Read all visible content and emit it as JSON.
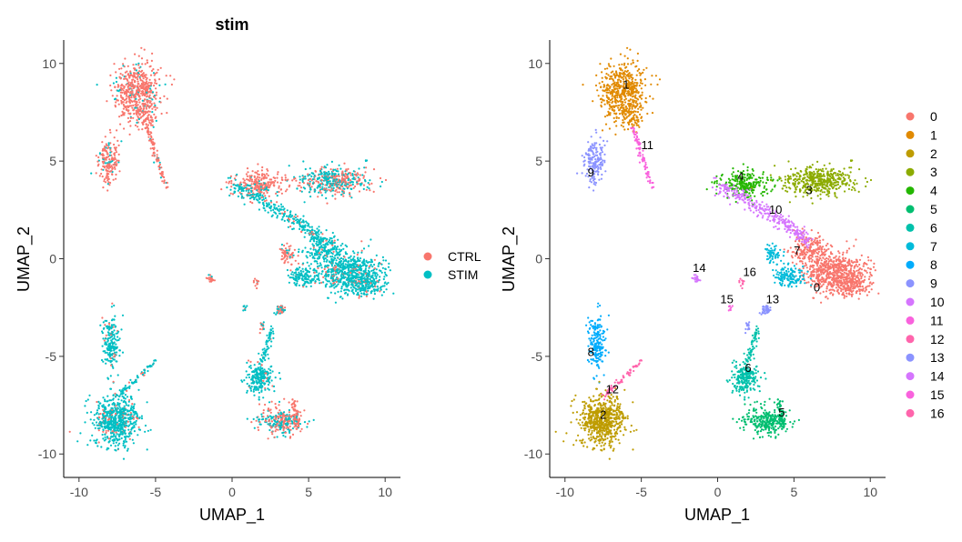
{
  "chart_data": [
    {
      "type": "scatter",
      "title": "stim",
      "xlabel": "UMAP_1",
      "ylabel": "UMAP_2",
      "xlim": [
        -11,
        11
      ],
      "ylim": [
        -11.2,
        11.2
      ],
      "xticks": [
        -10,
        -5,
        0,
        5,
        10
      ],
      "yticks": [
        -10,
        -5,
        0,
        5,
        10
      ],
      "grid": false,
      "legend_position": "right",
      "series": [
        {
          "name": "CTRL",
          "color": "#F8766D"
        },
        {
          "name": "STIM",
          "color": "#00BFC4"
        }
      ]
    },
    {
      "type": "scatter",
      "title": "",
      "xlabel": "UMAP_1",
      "ylabel": "UMAP_2",
      "xlim": [
        -11,
        11
      ],
      "ylim": [
        -11.2,
        11.2
      ],
      "xticks": [
        -10,
        -5,
        0,
        5,
        10
      ],
      "yticks": [
        -10,
        -5,
        0,
        5,
        10
      ],
      "grid": false,
      "legend_position": "right",
      "series": [
        {
          "name": "0",
          "color": "#F8766D",
          "label_pos": [
            6.5,
            -1.5
          ]
        },
        {
          "name": "1",
          "color": "#E18A00",
          "label_pos": [
            -6.0,
            8.9
          ]
        },
        {
          "name": "2",
          "color": "#BE9C00",
          "label_pos": [
            -7.5,
            -8.0
          ]
        },
        {
          "name": "3",
          "color": "#8CAB00",
          "label_pos": [
            6.0,
            3.5
          ]
        },
        {
          "name": "4",
          "color": "#24B700",
          "label_pos": [
            1.5,
            4.2
          ]
        },
        {
          "name": "5",
          "color": "#00BE70",
          "label_pos": [
            4.2,
            -7.9
          ]
        },
        {
          "name": "6",
          "color": "#00C1AB",
          "label_pos": [
            2.0,
            -5.6
          ]
        },
        {
          "name": "7",
          "color": "#00BBDA",
          "label_pos": [
            5.2,
            0.4
          ]
        },
        {
          "name": "8",
          "color": "#00ACFC",
          "label_pos": [
            -8.3,
            -4.8
          ]
        },
        {
          "name": "9",
          "color": "#8B93FF",
          "label_pos": [
            -8.3,
            4.4
          ]
        },
        {
          "name": "10",
          "color": "#D575FE",
          "label_pos": [
            3.8,
            2.5
          ]
        },
        {
          "name": "11",
          "color": "#F962DD",
          "label_pos": [
            -4.6,
            5.8
          ]
        },
        {
          "name": "12",
          "color": "#FF65AC",
          "label_pos": [
            -6.9,
            -6.7
          ]
        },
        {
          "name": "13",
          "color": "#8B93FF",
          "label_pos": [
            3.6,
            -2.1
          ]
        },
        {
          "name": "14",
          "color": "#D575FE",
          "label_pos": [
            -1.2,
            -0.5
          ]
        },
        {
          "name": "15",
          "color": "#F962DD",
          "label_pos": [
            0.6,
            -2.1
          ]
        },
        {
          "name": "16",
          "color": "#FF65AC",
          "label_pos": [
            2.1,
            -0.7
          ]
        }
      ]
    }
  ]
}
